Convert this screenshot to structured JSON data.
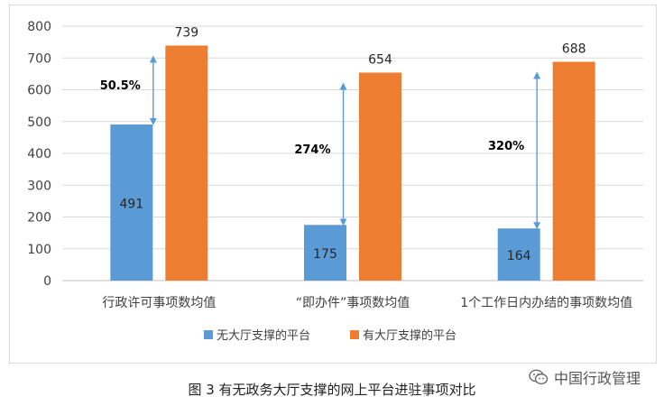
{
  "chart_data": {
    "type": "bar",
    "categories": [
      "行政许可事项数均值",
      "“即办件”事项数均值",
      "1个工作日内办结的事项数均值"
    ],
    "series": [
      {
        "name": "无大厅支撑的平台",
        "color": "#5b9bd5",
        "values": [
          491,
          175,
          164
        ]
      },
      {
        "name": "有大厅支撑的平台",
        "color": "#ed7d31",
        "values": [
          739,
          654,
          688
        ]
      }
    ],
    "annotations": [
      "50.5%",
      "274%",
      "320%"
    ],
    "y_ticks": [
      "0",
      "100",
      "200",
      "300",
      "400",
      "500",
      "600",
      "700",
      "800"
    ],
    "ylim": [
      0,
      800
    ],
    "grid": true,
    "legend_position": "bottom"
  },
  "caption": "图 3  有无政务大厅支撑的网上平台进驻事项对比",
  "watermark": {
    "icon": "wechat-icon",
    "text": "中国行政管理"
  }
}
